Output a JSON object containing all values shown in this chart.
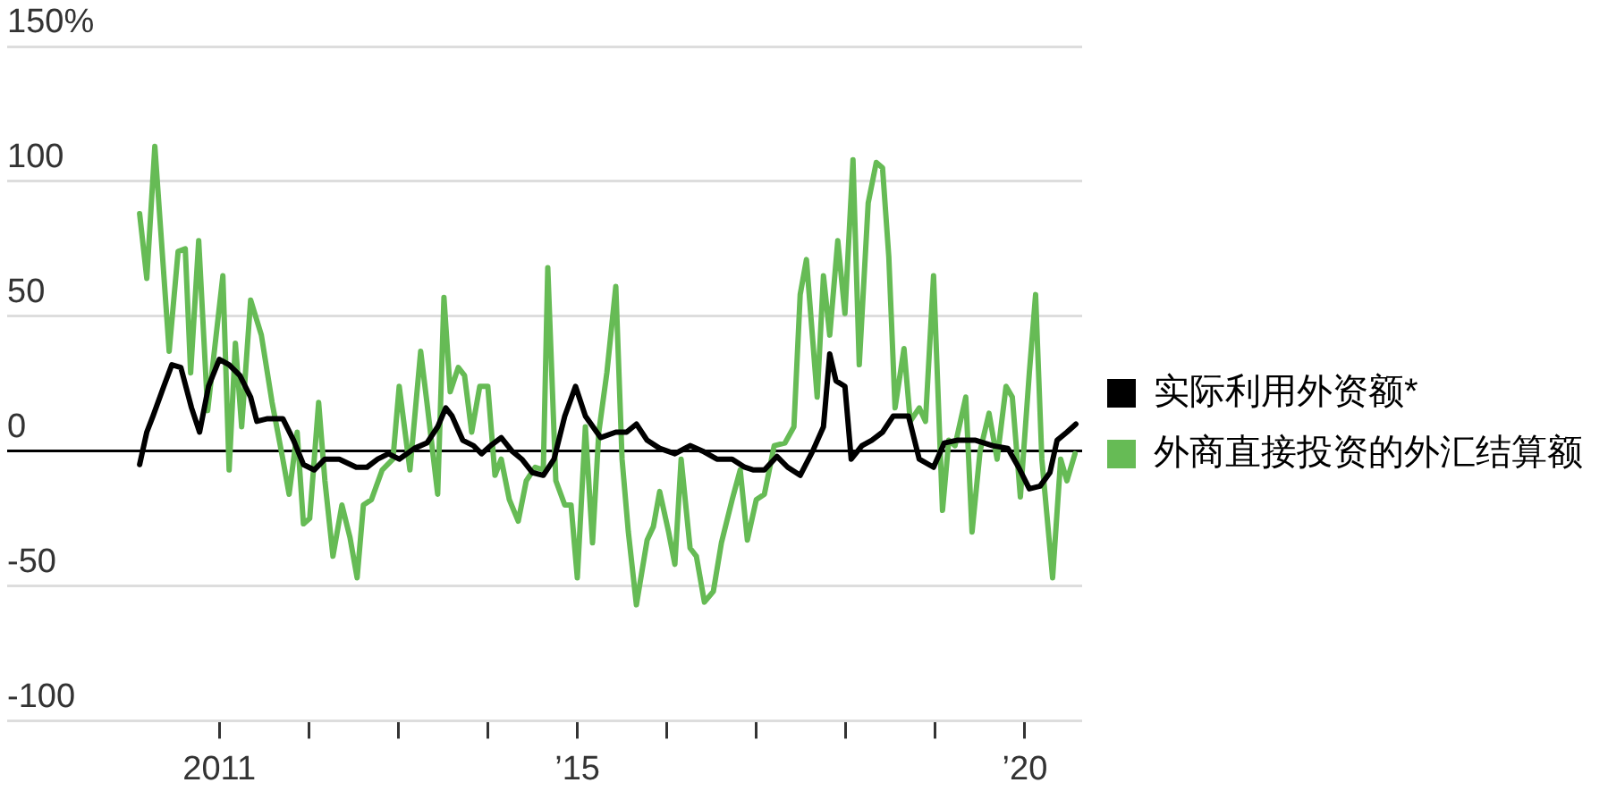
{
  "chart_data": {
    "type": "line",
    "xlim": [
      2008.63,
      2020.64
    ],
    "ylim": [
      -100,
      150
    ],
    "xticks": [
      2011,
      {
        "value": 2012,
        "label": null
      },
      {
        "value": 2013,
        "label": null
      },
      {
        "value": 2014,
        "label": null
      },
      {
        "value": 2015,
        "label": "’15"
      },
      {
        "value": 2016,
        "label": null
      },
      {
        "value": 2017,
        "label": null
      },
      {
        "value": 2018,
        "label": null
      },
      {
        "value": 2019,
        "label": null
      },
      {
        "value": 2020,
        "label": "’20"
      }
    ],
    "yticks": [
      {
        "value": 150,
        "label": "150%"
      },
      100,
      50,
      0,
      -50,
      -100
    ],
    "grid": "y",
    "legend": "right",
    "marker": "none",
    "line_style": "solid",
    "series": [
      {
        "name": "实际利用外资额*",
        "color": "#000000",
        "x": [
          2010.11,
          2010.19,
          2010.26,
          2010.38,
          2010.47,
          2010.57,
          2010.69,
          2010.78,
          2010.88,
          2011.0,
          2011.11,
          2011.23,
          2011.35,
          2011.42,
          2011.54,
          2011.71,
          2011.83,
          2011.94,
          2012.06,
          2012.18,
          2012.34,
          2012.53,
          2012.65,
          2012.77,
          2012.89,
          2013.01,
          2013.18,
          2013.32,
          2013.44,
          2013.53,
          2013.6,
          2013.72,
          2013.84,
          2013.93,
          2014.03,
          2014.15,
          2014.27,
          2014.38,
          2014.5,
          2014.62,
          2014.74,
          2014.86,
          2014.98,
          2015.09,
          2015.26,
          2015.43,
          2015.55,
          2015.66,
          2015.78,
          2015.92,
          2016.09,
          2016.26,
          2016.4,
          2016.56,
          2016.73,
          2016.87,
          2016.97,
          2017.09,
          2017.23,
          2017.35,
          2017.49,
          2017.63,
          2017.75,
          2017.82,
          2017.89,
          2017.99,
          2018.06,
          2018.18,
          2018.29,
          2018.41,
          2018.53,
          2018.7,
          2018.82,
          2018.98,
          2019.1,
          2019.24,
          2019.45,
          2019.64,
          2019.81,
          2019.93,
          2020.05,
          2020.17,
          2020.28,
          2020.36,
          2020.47,
          2020.57
        ],
        "values": [
          -5,
          7,
          13,
          24,
          32,
          31,
          16,
          7,
          24,
          34,
          32,
          28,
          20,
          11,
          12,
          12,
          4,
          -5,
          -7,
          -3,
          -3,
          -6,
          -6,
          -3,
          -1,
          -3,
          1,
          3,
          9,
          16,
          13,
          4,
          2,
          -1,
          2,
          5,
          0,
          -3,
          -8,
          -9,
          -3,
          13,
          24,
          13,
          5,
          7,
          7,
          10,
          4,
          1,
          -1,
          2,
          0,
          -3,
          -3,
          -6,
          -7,
          -7,
          -2,
          -6,
          -9,
          0,
          9,
          36,
          26,
          24,
          -3,
          2,
          4,
          7,
          13,
          13,
          -3,
          -6,
          3,
          4,
          4,
          2,
          1,
          -6,
          -14,
          -13,
          -8,
          4,
          7,
          10
        ]
      },
      {
        "name": "外商直接投资的外汇结算额",
        "color": "#66bb55",
        "x": [
          2010.11,
          2010.19,
          2010.28,
          2010.44,
          2010.54,
          2010.62,
          2010.68,
          2010.77,
          2010.87,
          2011.04,
          2011.11,
          2011.18,
          2011.25,
          2011.35,
          2011.47,
          2011.59,
          2011.71,
          2011.78,
          2011.87,
          2011.94,
          2012.01,
          2012.11,
          2012.18,
          2012.27,
          2012.37,
          2012.46,
          2012.54,
          2012.61,
          2012.7,
          2012.82,
          2012.94,
          2013.01,
          2013.13,
          2013.25,
          2013.32,
          2013.44,
          2013.51,
          2013.58,
          2013.67,
          2013.74,
          2013.82,
          2013.91,
          2014.0,
          2014.08,
          2014.15,
          2014.24,
          2014.34,
          2014.43,
          2014.53,
          2014.62,
          2014.67,
          2014.76,
          2014.86,
          2014.93,
          2015.0,
          2015.09,
          2015.17,
          2015.24,
          2015.33,
          2015.43,
          2015.5,
          2015.57,
          2015.66,
          2015.78,
          2015.85,
          2015.92,
          2016.02,
          2016.09,
          2016.16,
          2016.26,
          2016.33,
          2016.42,
          2016.52,
          2016.61,
          2016.73,
          2016.82,
          2016.9,
          2017.0,
          2017.09,
          2017.2,
          2017.32,
          2017.42,
          2017.49,
          2017.56,
          2017.68,
          2017.75,
          2017.82,
          2017.91,
          2017.99,
          2018.08,
          2018.15,
          2018.25,
          2018.34,
          2018.41,
          2018.48,
          2018.55,
          2018.65,
          2018.72,
          2018.82,
          2018.89,
          2018.98,
          2019.08,
          2019.15,
          2019.22,
          2019.34,
          2019.41,
          2019.5,
          2019.6,
          2019.69,
          2019.79,
          2019.86,
          2019.95,
          2020.05,
          2020.12,
          2020.19,
          2020.31,
          2020.4,
          2020.47,
          2020.56
        ],
        "values": [
          88,
          64,
          113,
          37,
          74,
          75,
          29,
          78,
          15,
          65,
          -7,
          40,
          9,
          56,
          43,
          18,
          -3,
          -16,
          7,
          -27,
          -25,
          18,
          -11,
          -39,
          -20,
          -32,
          -47,
          -20,
          -18,
          -7,
          -3,
          24,
          -7,
          37,
          18,
          -16,
          57,
          22,
          31,
          28,
          7,
          24,
          24,
          -9,
          -3,
          -18,
          -26,
          -11,
          -6,
          -7,
          68,
          -11,
          -20,
          -20,
          -47,
          9,
          -34,
          7,
          29,
          61,
          -3,
          -30,
          -57,
          -33,
          -28,
          -15,
          -30,
          -42,
          -3,
          -36,
          -39,
          -56,
          -52,
          -34,
          -18,
          -7,
          -33,
          -18,
          -16,
          2,
          3,
          9,
          58,
          71,
          20,
          65,
          43,
          78,
          51,
          108,
          32,
          92,
          107,
          105,
          72,
          16,
          38,
          11,
          16,
          11,
          65,
          -22,
          4,
          2,
          20,
          -30,
          0,
          14,
          -3,
          24,
          20,
          -17,
          29,
          58,
          -3,
          -47,
          -3,
          -11,
          -1
        ]
      }
    ]
  }
}
